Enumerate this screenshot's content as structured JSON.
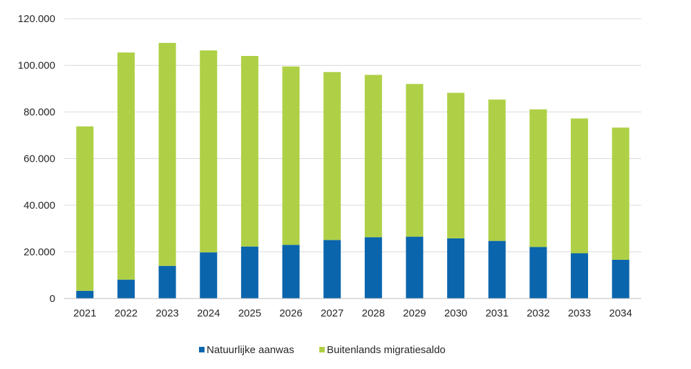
{
  "chart_data": {
    "type": "bar",
    "stacked": true,
    "title": "",
    "xlabel": "",
    "ylabel": "",
    "ylim": [
      0,
      120000
    ],
    "y_ticks": [
      0,
      20000,
      40000,
      60000,
      80000,
      100000,
      120000
    ],
    "y_tick_labels": [
      "0",
      "20.000",
      "40.000",
      "60.000",
      "80.000",
      "100.000",
      "120.000"
    ],
    "grid": true,
    "legend_position": "bottom-center",
    "categories": [
      "2021",
      "2022",
      "2023",
      "2024",
      "2025",
      "2026",
      "2027",
      "2028",
      "2029",
      "2030",
      "2031",
      "2032",
      "2033",
      "2034"
    ],
    "series": [
      {
        "name": "Natuurlijke aanwas",
        "color": "#0a65ad",
        "values": [
          3300,
          8100,
          14000,
          19800,
          22300,
          23000,
          25100,
          26300,
          26500,
          25800,
          24700,
          22100,
          19400,
          16600
        ]
      },
      {
        "name": "Buitenlands migratiesaldo",
        "color": "#afd046",
        "values": [
          70500,
          97400,
          95600,
          86600,
          81700,
          76500,
          72000,
          69600,
          65500,
          62400,
          60600,
          59000,
          57800,
          56700
        ]
      }
    ]
  }
}
